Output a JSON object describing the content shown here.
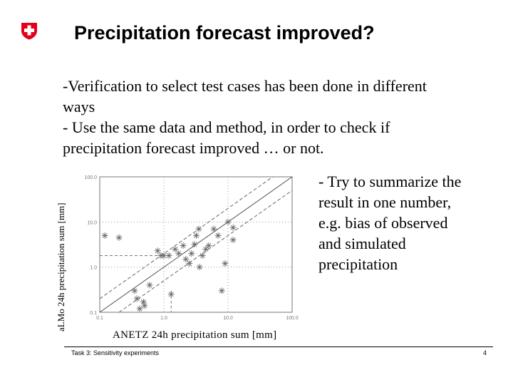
{
  "slide": {
    "title": "Precipitation forecast improved?",
    "intro_lines": [
      "-Verification to select test cases has been done in different",
      "ways",
      "- Use the same data and method, in order to check if",
      "precipitation forecast improved … or not."
    ],
    "bullet_lines": [
      "- Try to summarize the",
      "result in one number,",
      "e.g. bias of observed",
      "and simulated",
      "precipitation"
    ],
    "footer": "Task 3: Sensitivity experiments",
    "page_number": "4"
  },
  "logo": {
    "icon": "swiss-cross-icon",
    "color": "#e2001a"
  },
  "chart_data": {
    "type": "scatter",
    "title": "",
    "xlabel": "ANETZ 24h precipitation sum [mm]",
    "ylabel": "aLMo 24h precipitation sum [mm]",
    "xscale": "log",
    "yscale": "log",
    "xlim": [
      0.1,
      100
    ],
    "ylim": [
      0.1,
      100
    ],
    "x_ticks": [
      "0.1",
      "1.0",
      "10.0",
      "100.0"
    ],
    "y_ticks": [
      "0.1",
      "1.0",
      "10.0",
      "100.0"
    ],
    "grid": "dotted",
    "reference_lines": "1:1 line with factor-2 bounds",
    "points": [
      {
        "x": 0.12,
        "y": 5.0
      },
      {
        "x": 0.2,
        "y": 4.5
      },
      {
        "x": 0.35,
        "y": 0.3
      },
      {
        "x": 0.38,
        "y": 0.2
      },
      {
        "x": 0.42,
        "y": 0.12
      },
      {
        "x": 0.48,
        "y": 0.17
      },
      {
        "x": 0.5,
        "y": 0.14
      },
      {
        "x": 0.6,
        "y": 0.4
      },
      {
        "x": 0.8,
        "y": 2.3
      },
      {
        "x": 0.9,
        "y": 1.8
      },
      {
        "x": 1.0,
        "y": 1.8
      },
      {
        "x": 1.2,
        "y": 1.8
      },
      {
        "x": 1.3,
        "y": 0.25
      },
      {
        "x": 1.5,
        "y": 2.5
      },
      {
        "x": 1.7,
        "y": 2.0
      },
      {
        "x": 2.0,
        "y": 3.0
      },
      {
        "x": 2.2,
        "y": 1.5
      },
      {
        "x": 2.5,
        "y": 1.2
      },
      {
        "x": 2.7,
        "y": 2.0
      },
      {
        "x": 3.0,
        "y": 3.2
      },
      {
        "x": 3.2,
        "y": 5.0
      },
      {
        "x": 3.5,
        "y": 7.0
      },
      {
        "x": 3.6,
        "y": 1.0
      },
      {
        "x": 4.0,
        "y": 1.8
      },
      {
        "x": 4.5,
        "y": 2.5
      },
      {
        "x": 5.0,
        "y": 3.0
      },
      {
        "x": 6.0,
        "y": 7.0
      },
      {
        "x": 7.0,
        "y": 5.0
      },
      {
        "x": 8.0,
        "y": 0.3
      },
      {
        "x": 9.0,
        "y": 1.2
      },
      {
        "x": 10.0,
        "y": 10.0
      },
      {
        "x": 12.0,
        "y": 7.5
      },
      {
        "x": 12.0,
        "y": 4.0
      }
    ]
  }
}
